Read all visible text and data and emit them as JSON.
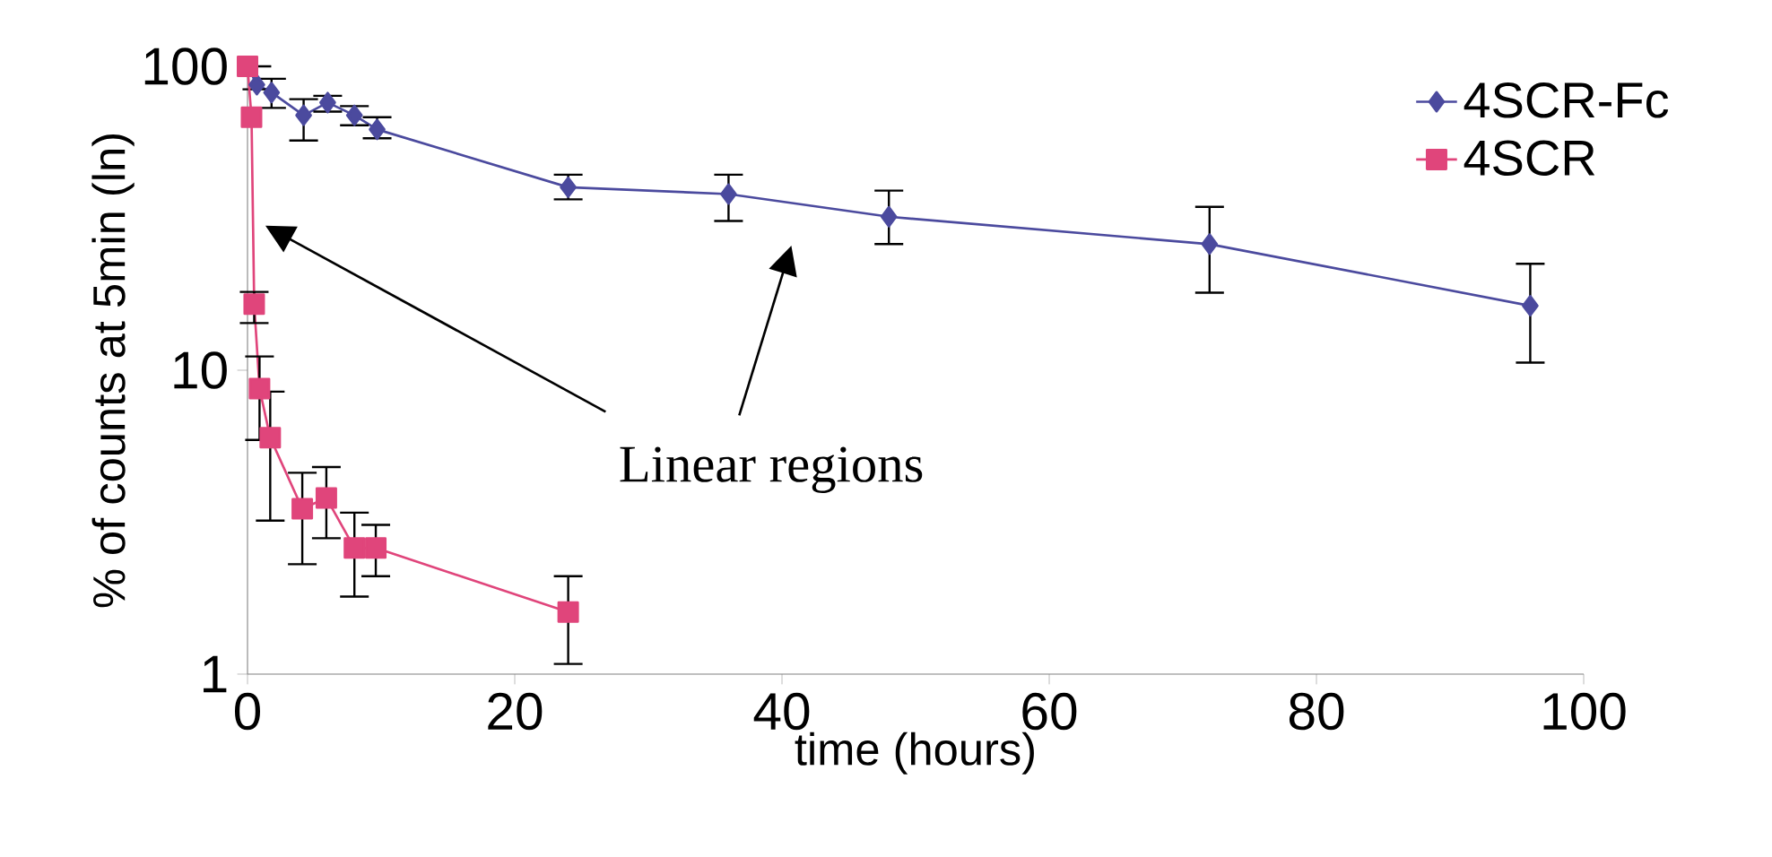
{
  "chart_data": {
    "type": "line",
    "xlabel": "time (hours)",
    "ylabel": "% of counts at 5min (ln)",
    "log": "y",
    "xlim": [
      0,
      100
    ],
    "ylim": [
      1,
      100
    ],
    "xticks": [
      0,
      20,
      40,
      60,
      80,
      100
    ],
    "yticks": [
      1,
      10,
      100
    ],
    "legend": "top right",
    "grid": false,
    "annotations": [
      "Linear regions"
    ],
    "series": [
      {
        "name": "4SCR-Fc",
        "color": "#4b4a9e",
        "marker": "diamond",
        "x": [
          0,
          0.7,
          1.8,
          4.2,
          6,
          8,
          9.7,
          24,
          36,
          48,
          72,
          96
        ],
        "values": [
          100,
          87,
          82,
          69,
          76,
          69,
          62,
          40,
          38,
          32,
          26,
          16.3
        ],
        "errors": [
          null,
          [
            84,
            100
          ],
          [
            73,
            91
          ],
          [
            57,
            78
          ],
          [
            71,
            80
          ],
          [
            64,
            74
          ],
          [
            58,
            68
          ],
          [
            36.5,
            44
          ],
          [
            31,
            44
          ],
          [
            26,
            39
          ],
          [
            18,
            34.5
          ],
          [
            10.6,
            22.4
          ]
        ]
      },
      {
        "name": "4SCR",
        "color": "#e0457b",
        "marker": "square",
        "x": [
          0,
          0.3,
          0.5,
          0.9,
          1.7,
          4.1,
          5.9,
          8,
          9.6,
          24
        ],
        "values": [
          100,
          68,
          16.5,
          8.7,
          6,
          3.5,
          3.8,
          2.6,
          2.6,
          1.6
        ],
        "errors": [
          null,
          null,
          [
            14.3,
            18.1
          ],
          [
            5.9,
            11.1
          ],
          [
            3.2,
            8.5
          ],
          [
            2.3,
            4.6
          ],
          [
            2.8,
            4.8
          ],
          [
            1.8,
            3.4
          ],
          [
            2.1,
            3.1
          ],
          [
            1.08,
            2.1
          ]
        ]
      }
    ]
  }
}
